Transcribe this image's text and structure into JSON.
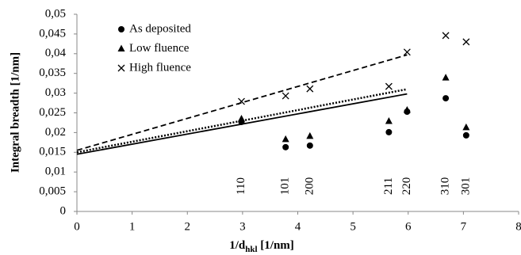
{
  "chart_data": {
    "type": "scatter",
    "y_label": "Integral breadth [1/nm]",
    "x_label": {
      "main": "1/d",
      "sub": "hkl",
      "unit": " [1/nm]"
    },
    "xlim": [
      0,
      8
    ],
    "xticks": [
      0,
      1,
      2,
      3,
      4,
      5,
      6,
      7,
      8
    ],
    "ylim": [
      0,
      0.05
    ],
    "yticks": [
      0,
      {
        "value": 0.005,
        "label": "0,005"
      },
      {
        "value": 0.01,
        "label": "0,01"
      },
      {
        "value": 0.015,
        "label": "0,015"
      },
      {
        "value": 0.02,
        "label": "0,02"
      },
      {
        "value": 0.025,
        "label": "0,025"
      },
      {
        "value": 0.03,
        "label": "0,03"
      },
      {
        "value": 0.035,
        "label": "0,035"
      },
      {
        "value": 0.04,
        "label": "0,04"
      },
      {
        "value": 0.045,
        "label": "0,045"
      },
      {
        "value": 0.05,
        "label": "0,05"
      }
    ],
    "legend": "top-left",
    "series": [
      {
        "name": "As deposited",
        "marker": "circle",
        "color": "#000000",
        "x": [
          2.98,
          3.78,
          4.22,
          5.65,
          5.98,
          6.68,
          7.05
        ],
        "values": [
          0.0227,
          0.0163,
          0.0167,
          0.0201,
          0.0253,
          0.0287,
          0.0193
        ]
      },
      {
        "name": "Low fluence",
        "marker": "triangle",
        "color": "#000000",
        "x": [
          2.98,
          3.78,
          4.22,
          5.65,
          5.98,
          6.68,
          7.05
        ],
        "values": [
          0.0235,
          0.0183,
          0.0191,
          0.0229,
          0.0257,
          0.0339,
          0.0213
        ]
      },
      {
        "name": "High fluence",
        "marker": "cross",
        "color": "#000000",
        "x": [
          2.98,
          3.78,
          4.22,
          5.65,
          5.98,
          6.68,
          7.05
        ],
        "values": [
          0.0279,
          0.0293,
          0.0311,
          0.0317,
          0.0404,
          0.0446,
          0.043
        ]
      }
    ],
    "trendlines": [
      {
        "dash": "solid",
        "x": [
          0,
          5.98
        ],
        "values": [
          0.0145,
          0.0298
        ]
      },
      {
        "dash": "dotted",
        "x": [
          0,
          5.98
        ],
        "values": [
          0.015,
          0.031
        ]
      },
      {
        "dash": "dashed",
        "x": [
          0,
          5.98
        ],
        "values": [
          0.0155,
          0.0397
        ]
      }
    ],
    "annotations": [
      {
        "text": "110",
        "x": 2.98
      },
      {
        "text": "101",
        "x": 3.78
      },
      {
        "text": "200",
        "x": 4.22
      },
      {
        "text": "211",
        "x": 5.65
      },
      {
        "text": "220",
        "x": 5.98
      },
      {
        "text": "310",
        "x": 6.68
      },
      {
        "text": "301",
        "x": 7.05
      }
    ]
  }
}
